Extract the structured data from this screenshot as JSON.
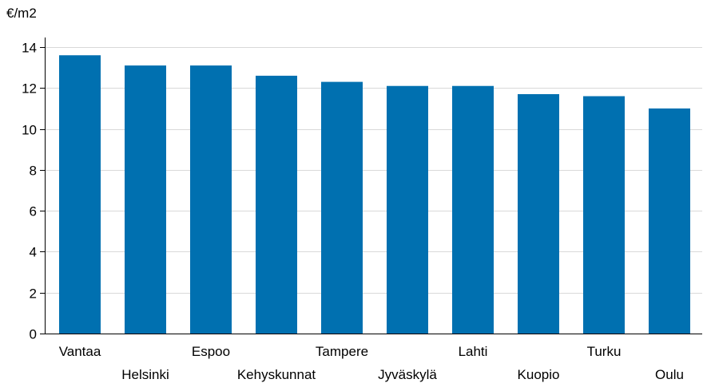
{
  "chart_data": {
    "type": "bar",
    "title": "",
    "xlabel": "",
    "ylabel": "€/m2",
    "ylim": [
      0,
      14
    ],
    "yticks": [
      0,
      2,
      4,
      6,
      8,
      10,
      12,
      14
    ],
    "grid": true,
    "legend": "none",
    "bar_color": "#0070b0",
    "categories": [
      "Vantaa",
      "Helsinki",
      "Espoo",
      "Kehyskunnat",
      "Tampere",
      "Jyväskylä",
      "Lahti",
      "Kuopio",
      "Turku",
      "Oulu"
    ],
    "values": [
      13.6,
      13.1,
      13.1,
      12.6,
      12.3,
      12.1,
      12.1,
      11.7,
      11.6,
      11.0
    ]
  }
}
